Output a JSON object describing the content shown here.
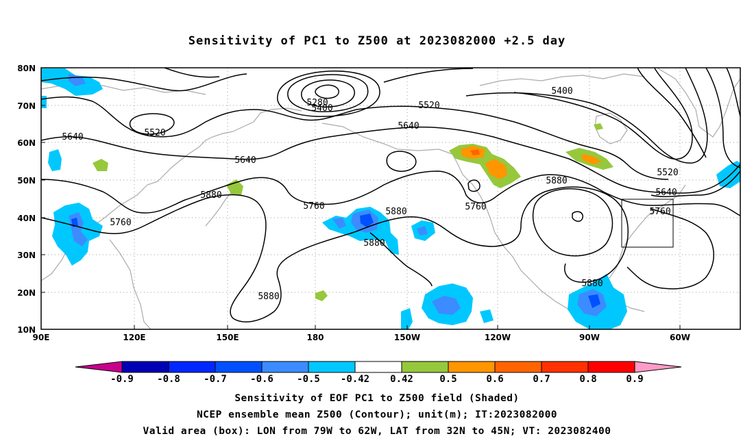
{
  "title": "Sensitivity of PC1 to Z500 at 2023082000 +2.5 day",
  "map": {
    "projection": "cylindrical equidistant",
    "lon_range": [
      "90E",
      "45W"
    ],
    "lat_range": [
      "10N",
      "80N"
    ],
    "lat_ticks": [
      "80N",
      "70N",
      "60N",
      "50N",
      "40N",
      "30N",
      "20N",
      "10N"
    ],
    "lon_ticks": [
      "90E",
      "120E",
      "150E",
      "180",
      "150W",
      "120W",
      "90W",
      "60W"
    ],
    "gridlines": "dotted",
    "coastline_color": "#aaaaaa",
    "contour_color": "#000000",
    "contour_labels": [
      {
        "id": "c5280",
        "text": "5280"
      },
      {
        "id": "c5400a",
        "text": "5400"
      },
      {
        "id": "c5520a",
        "text": "5520"
      },
      {
        "id": "c5400b",
        "text": "5400"
      },
      {
        "id": "c5520b",
        "text": "5520"
      },
      {
        "id": "c5640a",
        "text": "5640"
      },
      {
        "id": "c5640b",
        "text": "5640"
      },
      {
        "id": "c5640c",
        "text": "5640"
      },
      {
        "id": "c5760a",
        "text": "5760"
      },
      {
        "id": "c5880a",
        "text": "5880"
      },
      {
        "id": "c5760b",
        "text": "5760"
      },
      {
        "id": "c5880b",
        "text": "5880"
      },
      {
        "id": "c5880c",
        "text": "5880"
      },
      {
        "id": "c5760c",
        "text": "5760"
      },
      {
        "id": "c5880d",
        "text": "5880"
      },
      {
        "id": "c5520c",
        "text": "5520"
      },
      {
        "id": "c5640d",
        "text": "5640"
      },
      {
        "id": "c5760d",
        "text": "5760"
      },
      {
        "id": "c5880e",
        "text": "5880"
      },
      {
        "id": "c5880f",
        "text": "5880"
      }
    ],
    "valid_area_box": {
      "lon": [
        "79W",
        "62W"
      ],
      "lat": [
        "32N",
        "45N"
      ]
    }
  },
  "colorbar": {
    "labels": [
      "-0.9",
      "-0.8",
      "-0.7",
      "-0.6",
      "-0.5",
      "-0.42",
      "0.42",
      "0.5",
      "0.6",
      "0.7",
      "0.8",
      "0.9"
    ],
    "colors": [
      "#c8008c",
      "#0000b4",
      "#0028ff",
      "#0050ff",
      "#3c8cff",
      "#00c8ff",
      "#ffffff",
      "#96c83c",
      "#ff9600",
      "#ff6400",
      "#ff3200",
      "#ff0000",
      "#ff9bc8"
    ]
  },
  "captions": {
    "line1": "Sensitivity of EOF PC1 to Z500 field (Shaded)",
    "line2": "NCEP ensemble mean Z500 (Contour); unit(m); IT:2023082000",
    "line3": "Valid area (box): LON from 79W to 62W, LAT from 32N to 45N; VT: 2023082400"
  }
}
